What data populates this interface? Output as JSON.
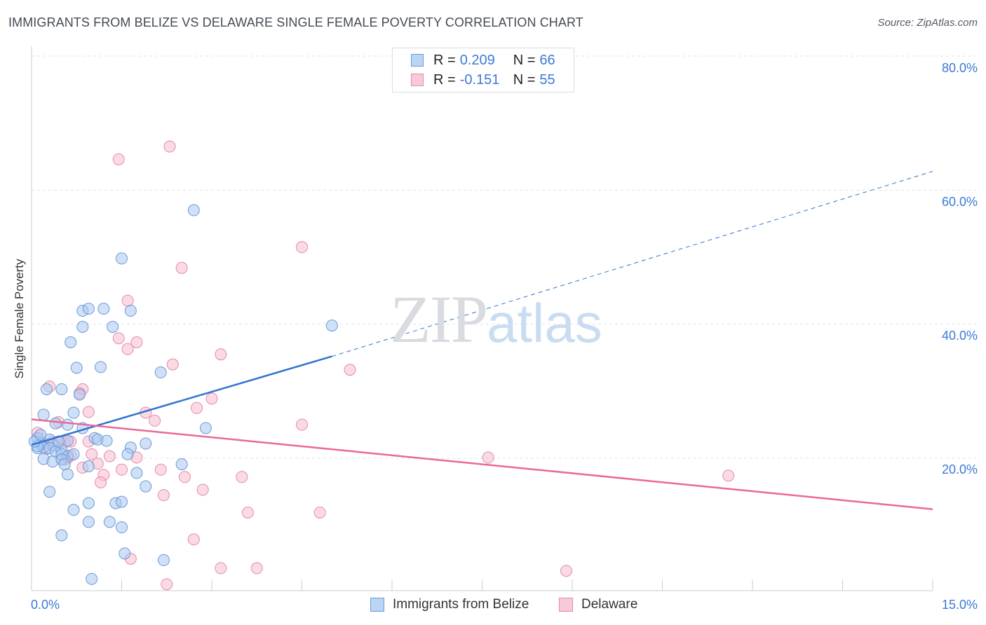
{
  "title": "IMMIGRANTS FROM BELIZE VS DELAWARE SINGLE FEMALE POVERTY CORRELATION CHART",
  "source": "Source: ZipAtlas.com",
  "watermark": {
    "zip": "ZIP",
    "atlas": "atlas"
  },
  "legend_top": {
    "rows": [
      {
        "r_label": "R =",
        "r_value": "0.209",
        "n_label": "N =",
        "n_value": "66"
      },
      {
        "r_label": "R =",
        "r_value": "-0.151",
        "n_label": "N =",
        "n_value": "55"
      }
    ]
  },
  "legend_bottom": [
    "Immigrants from Belize",
    "Delaware"
  ],
  "x_axis": {
    "min_label": "0.0%",
    "max_label": "15.0%"
  },
  "y_axis": {
    "ticks": [
      "80.0%",
      "60.0%",
      "40.0%",
      "20.0%"
    ]
  },
  "colors": {
    "blue_fill": "#a9c8f0",
    "blue_stroke": "#6a9ad8",
    "blue_line": "#2f73d0",
    "pink_fill": "#f5b8cc",
    "pink_stroke": "#e889a8",
    "pink_line": "#e86a97",
    "tick_text": "#3c79d6"
  },
  "chart_data": {
    "type": "scatter",
    "title": "IMMIGRANTS FROM BELIZE VS DELAWARE SINGLE FEMALE POVERTY CORRELATION CHART",
    "xlabel": "",
    "ylabel": "Single Female Poverty",
    "xlim": [
      0,
      15
    ],
    "ylim": [
      0,
      82
    ],
    "grid": true,
    "series": [
      {
        "name": "Immigrants from Belize",
        "r": 0.209,
        "n": 66,
        "trend": {
          "x": [
            0.0,
            5.0
          ],
          "y": [
            22.0,
            35.2
          ],
          "dashed_to": [
            15.0,
            62.8
          ]
        },
        "points": [
          [
            2.7,
            57.0
          ],
          [
            1.5,
            49.8
          ],
          [
            5.0,
            39.8
          ],
          [
            0.85,
            42.0
          ],
          [
            0.95,
            42.3
          ],
          [
            1.2,
            42.3
          ],
          [
            1.65,
            42.0
          ],
          [
            0.85,
            39.6
          ],
          [
            1.35,
            39.6
          ],
          [
            0.65,
            37.3
          ],
          [
            0.75,
            33.5
          ],
          [
            1.15,
            33.6
          ],
          [
            2.15,
            32.8
          ],
          [
            0.5,
            30.3
          ],
          [
            0.25,
            30.3
          ],
          [
            0.8,
            29.5
          ],
          [
            0.7,
            26.8
          ],
          [
            0.2,
            26.5
          ],
          [
            0.4,
            25.2
          ],
          [
            0.6,
            25.0
          ],
          [
            0.85,
            24.5
          ],
          [
            2.9,
            24.5
          ],
          [
            0.1,
            23.0
          ],
          [
            0.3,
            22.8
          ],
          [
            0.6,
            22.6
          ],
          [
            1.05,
            23.0
          ],
          [
            1.1,
            22.8
          ],
          [
            0.15,
            22.2
          ],
          [
            0.35,
            22.0
          ],
          [
            0.1,
            21.5
          ],
          [
            0.2,
            21.6
          ],
          [
            0.5,
            21.3
          ],
          [
            1.65,
            21.6
          ],
          [
            0.1,
            21.8
          ],
          [
            0.3,
            21.5
          ],
          [
            0.4,
            21.0
          ],
          [
            0.5,
            20.6
          ],
          [
            0.6,
            20.3
          ],
          [
            0.7,
            20.6
          ],
          [
            1.6,
            20.6
          ],
          [
            1.9,
            22.2
          ],
          [
            0.2,
            19.9
          ],
          [
            0.35,
            19.5
          ],
          [
            0.5,
            19.8
          ],
          [
            0.55,
            19.1
          ],
          [
            0.95,
            18.8
          ],
          [
            2.5,
            19.1
          ],
          [
            0.6,
            17.6
          ],
          [
            1.75,
            17.8
          ],
          [
            1.9,
            15.8
          ],
          [
            0.3,
            15.0
          ],
          [
            0.95,
            13.3
          ],
          [
            1.4,
            13.3
          ],
          [
            1.5,
            13.5
          ],
          [
            0.7,
            12.3
          ],
          [
            0.95,
            10.5
          ],
          [
            1.3,
            10.5
          ],
          [
            1.5,
            9.7
          ],
          [
            0.5,
            8.5
          ],
          [
            1.55,
            5.8
          ],
          [
            2.2,
            4.8
          ],
          [
            1.0,
            2.0
          ],
          [
            0.05,
            22.5
          ],
          [
            0.15,
            23.5
          ],
          [
            0.45,
            22.5
          ],
          [
            1.25,
            22.6
          ]
        ]
      },
      {
        "name": "Delaware",
        "r": -0.151,
        "n": 55,
        "trend": {
          "x": [
            0.0,
            15.0
          ],
          "y": [
            25.8,
            12.4
          ]
        },
        "points": [
          [
            2.3,
            66.5
          ],
          [
            1.45,
            64.6
          ],
          [
            4.5,
            51.5
          ],
          [
            2.5,
            48.4
          ],
          [
            1.6,
            43.5
          ],
          [
            1.45,
            37.9
          ],
          [
            1.75,
            37.3
          ],
          [
            1.6,
            36.3
          ],
          [
            3.15,
            35.5
          ],
          [
            2.35,
            34.0
          ],
          [
            5.3,
            33.2
          ],
          [
            0.3,
            30.7
          ],
          [
            0.85,
            30.3
          ],
          [
            0.8,
            29.7
          ],
          [
            3.0,
            28.9
          ],
          [
            2.75,
            27.5
          ],
          [
            0.95,
            26.9
          ],
          [
            1.9,
            26.8
          ],
          [
            2.05,
            25.6
          ],
          [
            4.5,
            25.0
          ],
          [
            0.45,
            25.4
          ],
          [
            0.35,
            22.5
          ],
          [
            0.55,
            22.4
          ],
          [
            0.65,
            22.5
          ],
          [
            0.95,
            22.5
          ],
          [
            0.2,
            22.2
          ],
          [
            0.25,
            21.4
          ],
          [
            0.65,
            20.4
          ],
          [
            0.6,
            20.0
          ],
          [
            1.0,
            20.6
          ],
          [
            1.3,
            20.3
          ],
          [
            1.1,
            19.2
          ],
          [
            0.55,
            19.8
          ],
          [
            1.75,
            20.1
          ],
          [
            7.6,
            20.1
          ],
          [
            0.85,
            18.6
          ],
          [
            1.5,
            18.3
          ],
          [
            2.15,
            18.3
          ],
          [
            1.2,
            17.5
          ],
          [
            2.55,
            17.2
          ],
          [
            3.5,
            17.2
          ],
          [
            11.6,
            17.4
          ],
          [
            1.15,
            16.4
          ],
          [
            2.85,
            15.3
          ],
          [
            2.2,
            14.5
          ],
          [
            3.6,
            11.9
          ],
          [
            4.8,
            11.9
          ],
          [
            2.7,
            7.9
          ],
          [
            1.65,
            5.0
          ],
          [
            3.15,
            3.6
          ],
          [
            3.75,
            3.6
          ],
          [
            8.9,
            3.2
          ],
          [
            2.25,
            1.2
          ],
          [
            0.1,
            23.8
          ],
          [
            0.4,
            21.9
          ]
        ]
      }
    ]
  }
}
